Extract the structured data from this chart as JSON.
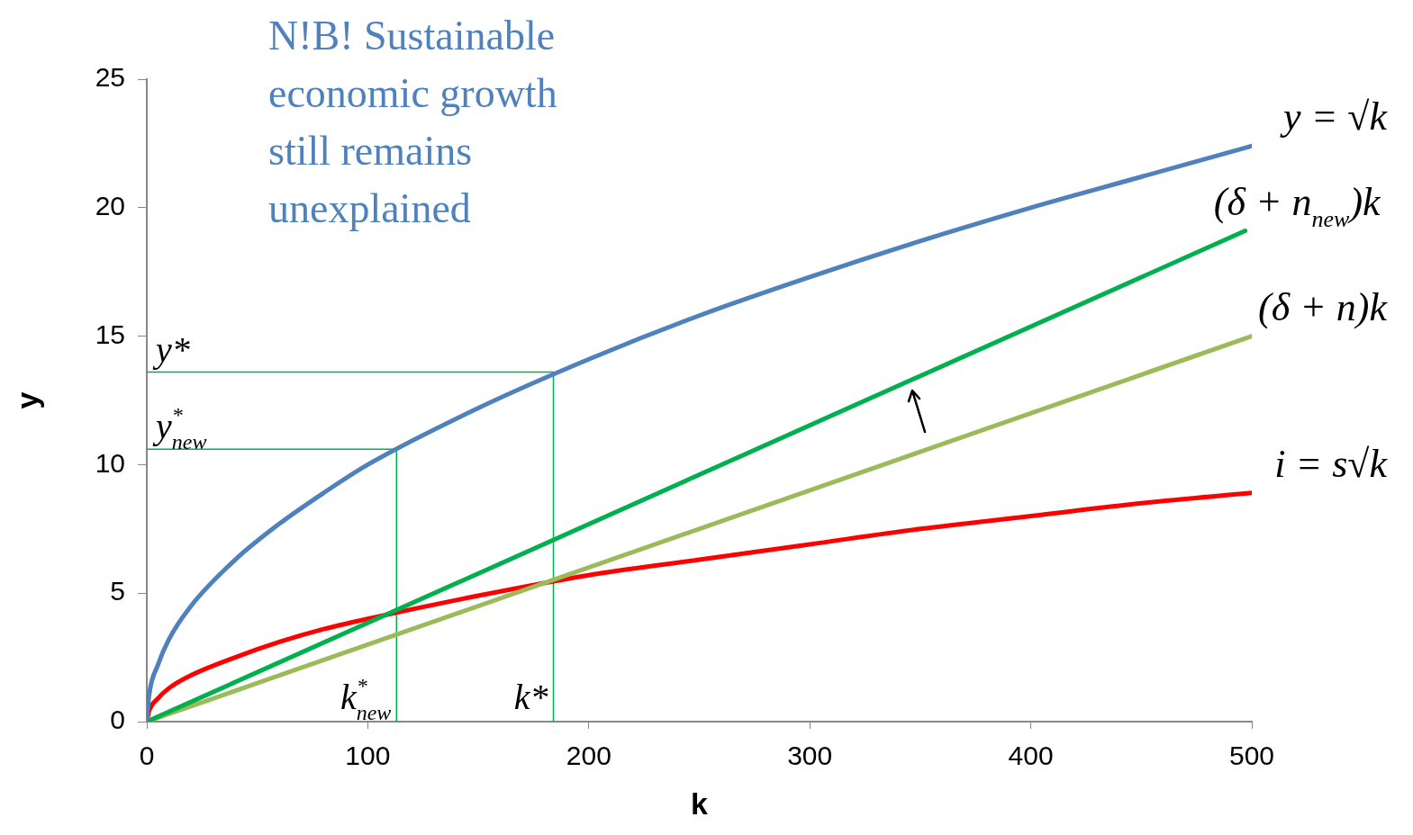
{
  "chart_data": {
    "type": "line",
    "title": "N!B! Sustainable economic growth still remains unexplained",
    "xlabel": "k",
    "ylabel": "y",
    "xlim": [
      0,
      500
    ],
    "xticks": [
      0,
      100,
      200,
      300,
      400,
      500
    ],
    "ylim": [
      0,
      25
    ],
    "yticks": [
      0,
      5,
      10,
      15,
      20,
      25
    ],
    "grid": false,
    "legend": false,
    "marker": "none",
    "line_style": "solid",
    "series": [
      {
        "name": "y = √k",
        "color": "#4f81bd",
        "x": [
          0,
          1,
          5,
          10,
          20,
          40,
          60,
          80,
          100,
          150,
          200,
          250,
          300,
          350,
          400,
          450,
          500
        ],
        "values": [
          0,
          1,
          2.2,
          3.2,
          4.5,
          6.3,
          7.7,
          8.9,
          10,
          12.2,
          14.1,
          15.8,
          17.3,
          18.7,
          20,
          21.2,
          22.4
        ]
      },
      {
        "name": "(δ + n$_{new}$)k",
        "color": "#00b050",
        "x": [
          0,
          497
        ],
        "values": [
          0,
          19.1
        ]
      },
      {
        "name": "(δ + n)k",
        "color": "#9bbb59",
        "x": [
          0,
          500
        ],
        "values": [
          0,
          15
        ]
      },
      {
        "name": "i = s√k",
        "color": "#ff0000",
        "x": [
          0,
          1,
          5,
          10,
          20,
          40,
          60,
          80,
          100,
          150,
          200,
          250,
          300,
          350,
          400,
          450,
          500
        ],
        "values": [
          0,
          0.4,
          0.9,
          1.3,
          1.8,
          2.5,
          3.1,
          3.6,
          4,
          4.9,
          5.7,
          6.3,
          6.9,
          7.5,
          8,
          8.5,
          8.9
        ]
      },
      {
        "color": "#00b050",
        "x": [
          0,
          184,
          184
        ],
        "values": [
          13.6,
          13.6,
          0
        ]
      },
      {
        "color": "#00b050",
        "x": [
          0,
          113,
          113
        ],
        "values": [
          10.6,
          10.6,
          0
        ]
      }
    ],
    "annotations": [
      {
        "text": "y*",
        "x": 0,
        "y": 13.6
      },
      {
        "text": "y$^{*}$$_{new}$",
        "x": 0,
        "y": 10.6
      },
      {
        "text": "k*",
        "x": 184,
        "y": 0
      },
      {
        "text": "k$^{*}$$_{new}$",
        "x": 113,
        "y": 0
      }
    ]
  }
}
